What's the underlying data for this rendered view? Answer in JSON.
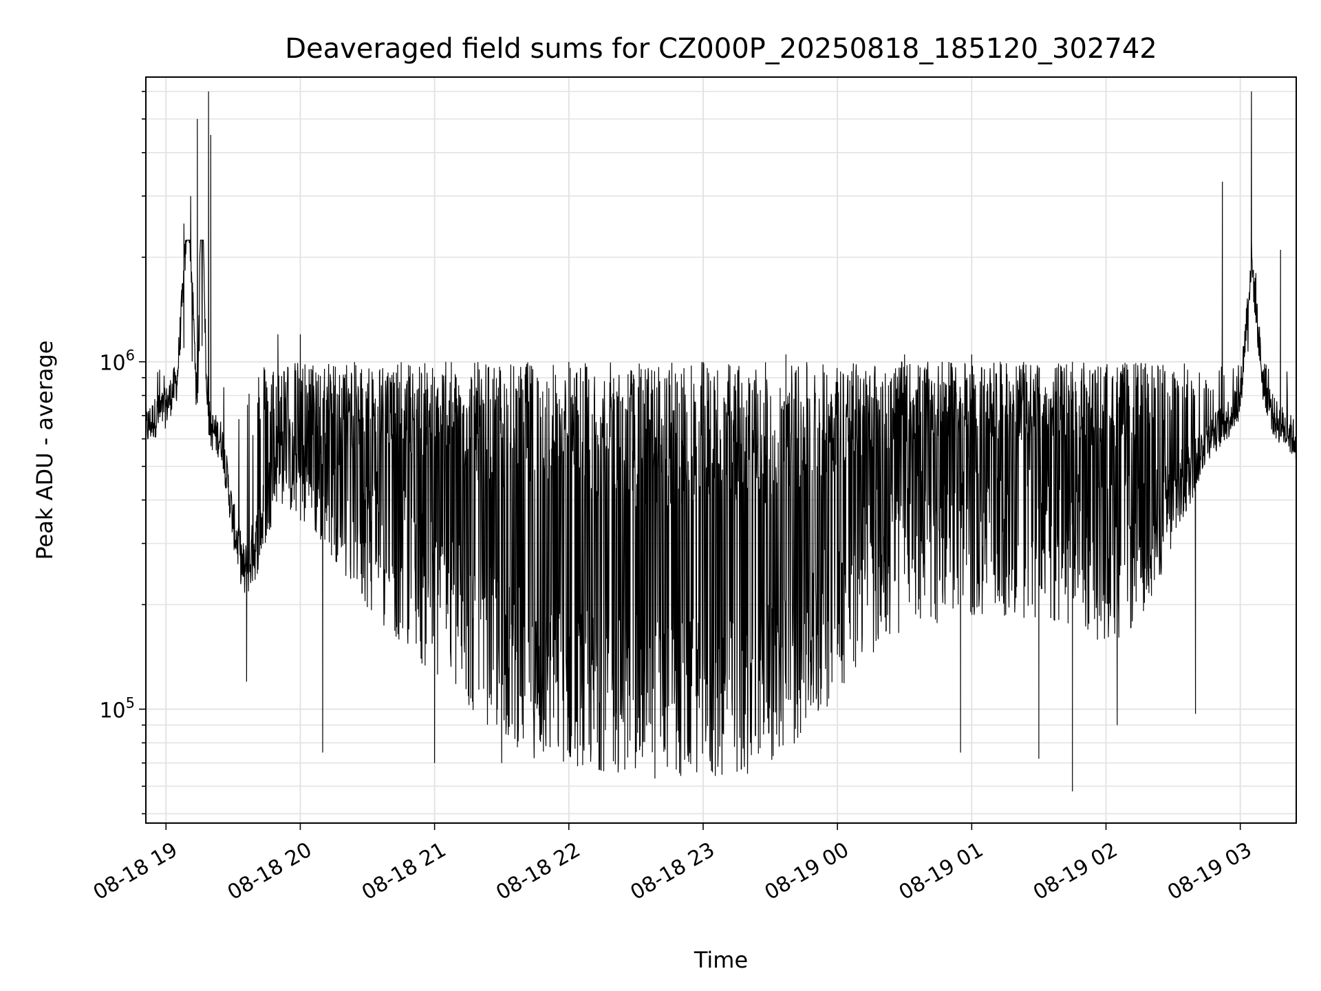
{
  "chart_data": {
    "type": "line",
    "title": "Deaveraged field sums for CZ000P_20250818_185120_302742",
    "xlabel": "Time",
    "ylabel": "Peak ADU - average",
    "yscale": "log",
    "ylim": [
      47000,
      6600000
    ],
    "xlim": [
      "2025-08-18 18:51",
      "2025-08-19 03:25"
    ],
    "grid": true,
    "line_color": "#000000",
    "x_ticks": [
      {
        "t": "2025-08-18 19:00",
        "label": "08-18 19"
      },
      {
        "t": "2025-08-18 20:00",
        "label": "08-18 20"
      },
      {
        "t": "2025-08-18 21:00",
        "label": "08-18 21"
      },
      {
        "t": "2025-08-18 22:00",
        "label": "08-18 22"
      },
      {
        "t": "2025-08-18 23:00",
        "label": "08-18 23"
      },
      {
        "t": "2025-08-19 00:00",
        "label": "08-19 00"
      },
      {
        "t": "2025-08-19 01:00",
        "label": "08-19 01"
      },
      {
        "t": "2025-08-19 02:00",
        "label": "08-19 02"
      },
      {
        "t": "2025-08-19 03:00",
        "label": "08-19 03"
      }
    ],
    "y_major_ticks": [
      {
        "value": 100000,
        "base": "10",
        "exp": "5"
      },
      {
        "value": 1000000,
        "base": "10",
        "exp": "6"
      }
    ],
    "series": [
      {
        "name": "",
        "x": [
          "2025-08-18 18:51",
          "2025-08-18 18:55",
          "2025-08-18 19:00",
          "2025-08-18 19:05",
          "2025-08-18 19:08",
          "2025-08-18 19:10",
          "2025-08-18 19:12",
          "2025-08-18 19:14",
          "2025-08-18 19:16",
          "2025-08-18 19:18",
          "2025-08-18 19:20",
          "2025-08-18 19:25",
          "2025-08-18 19:30",
          "2025-08-18 19:35",
          "2025-08-18 19:40",
          "2025-08-18 19:45",
          "2025-08-18 19:50",
          "2025-08-18 20:00",
          "2025-08-18 20:15",
          "2025-08-18 20:30",
          "2025-08-18 20:45",
          "2025-08-18 21:00",
          "2025-08-18 21:15",
          "2025-08-18 21:30",
          "2025-08-18 21:45",
          "2025-08-18 22:00",
          "2025-08-18 22:15",
          "2025-08-18 22:30",
          "2025-08-18 22:45",
          "2025-08-18 23:00",
          "2025-08-18 23:15",
          "2025-08-18 23:30",
          "2025-08-18 23:45",
          "2025-08-19 00:00",
          "2025-08-19 00:15",
          "2025-08-19 00:30",
          "2025-08-19 00:45",
          "2025-08-19 01:00",
          "2025-08-19 01:15",
          "2025-08-19 01:30",
          "2025-08-19 01:45",
          "2025-08-19 02:00",
          "2025-08-19 02:15",
          "2025-08-19 02:30",
          "2025-08-19 02:45",
          "2025-08-19 02:55",
          "2025-08-19 03:00",
          "2025-08-19 03:05",
          "2025-08-19 03:10",
          "2025-08-19 03:15",
          "2025-08-19 03:20",
          "2025-08-19 03:25"
        ],
        "y": [
          650000,
          700000,
          750000,
          900000,
          1800000,
          2900000,
          1500000,
          700000,
          5000000,
          800000,
          650000,
          600000,
          350000,
          250000,
          300000,
          400000,
          550000,
          500000,
          450000,
          350000,
          280000,
          220000,
          180000,
          150000,
          130000,
          125000,
          120000,
          115000,
          113000,
          112000,
          115000,
          125000,
          150000,
          200000,
          260000,
          300000,
          320000,
          330000,
          320000,
          310000,
          300000,
          280000,
          300000,
          400000,
          600000,
          700000,
          800000,
          2000000,
          900000,
          700000,
          650000,
          600000
        ],
        "peaks": [
          {
            "t": "2025-08-18 19:08",
            "v": 2500000
          },
          {
            "t": "2025-08-18 19:11",
            "v": 3000000
          },
          {
            "t": "2025-08-18 19:14",
            "v": 5000000
          },
          {
            "t": "2025-08-18 19:19",
            "v": 6000000
          },
          {
            "t": "2025-08-18 19:20",
            "v": 4500000
          },
          {
            "t": "2025-08-18 19:50",
            "v": 1200000
          },
          {
            "t": "2025-08-18 20:00",
            "v": 1200000
          },
          {
            "t": "2025-08-18 21:05",
            "v": 1000000
          },
          {
            "t": "2025-08-18 22:00",
            "v": 1000000
          },
          {
            "t": "2025-08-18 23:00",
            "v": 1000000
          },
          {
            "t": "2025-08-18 23:37",
            "v": 1050000
          },
          {
            "t": "2025-08-19 00:30",
            "v": 1050000
          },
          {
            "t": "2025-08-19 01:00",
            "v": 1050000
          },
          {
            "t": "2025-08-19 01:45",
            "v": 1000000
          },
          {
            "t": "2025-08-19 02:52",
            "v": 3300000
          },
          {
            "t": "2025-08-19 03:05",
            "v": 6000000
          },
          {
            "t": "2025-08-19 03:07",
            "v": 1800000
          },
          {
            "t": "2025-08-19 03:18",
            "v": 2100000
          }
        ],
        "dips": [
          {
            "t": "2025-08-18 19:30",
            "v": 330000
          },
          {
            "t": "2025-08-18 19:36",
            "v": 120000
          },
          {
            "t": "2025-08-18 20:10",
            "v": 75000
          },
          {
            "t": "2025-08-18 21:00",
            "v": 70000
          },
          {
            "t": "2025-08-18 21:30",
            "v": 70000
          },
          {
            "t": "2025-08-18 22:25",
            "v": 67000
          },
          {
            "t": "2025-08-18 22:48",
            "v": 67000
          },
          {
            "t": "2025-08-18 23:17",
            "v": 67000
          },
          {
            "t": "2025-08-19 00:55",
            "v": 75000
          },
          {
            "t": "2025-08-19 01:30",
            "v": 72000
          },
          {
            "t": "2025-08-19 01:45",
            "v": 58000
          },
          {
            "t": "2025-08-19 02:05",
            "v": 90000
          },
          {
            "t": "2025-08-19 02:40",
            "v": 97000
          }
        ]
      }
    ]
  }
}
